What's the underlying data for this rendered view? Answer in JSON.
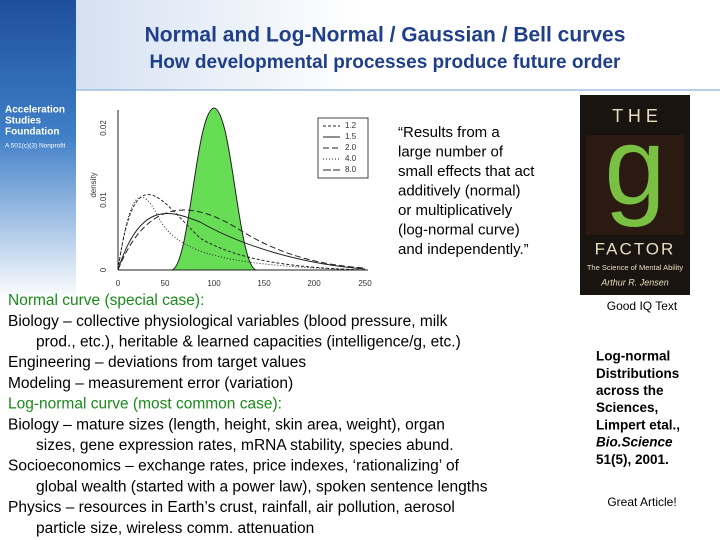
{
  "header": {
    "title": "Normal and Log-Normal / Gaussian / Bell curves",
    "subtitle": "How developmental processes produce future order"
  },
  "logo": {
    "name": [
      "Acceleration",
      "Studies",
      "Foundation"
    ],
    "tagline": "A 501(c)(3) Nonprofit"
  },
  "figure": {
    "y_label": "density",
    "y_ticks": [
      "0.02",
      "0.01",
      "0"
    ],
    "x_ticks": [
      "0",
      "50",
      "100",
      "150",
      "200",
      "250"
    ],
    "legend": [
      "1.2",
      "1.5",
      "2.0",
      "4.0",
      "8.0"
    ]
  },
  "quote": [
    "“Results from a",
    "large number of",
    "small effects that act",
    "additively (normal)",
    "or multiplicatively",
    "(log-normal curve)",
    "and independently.”"
  ],
  "book": {
    "the": "T H E",
    "letter": "g",
    "factor": "FACTOR",
    "subtitle": "The Science of Mental Ability",
    "author": "Arthur R. Jensen",
    "caption": "Good IQ Text"
  },
  "article": {
    "lines": [
      "Log-normal",
      "Distributions",
      "across the",
      "Sciences,",
      "Limpert etal.,"
    ],
    "journal": "Bio.Science",
    "issue": "51(5), 2001.",
    "caption": "Great Article!"
  },
  "body": [
    {
      "heading": "Normal curve (special case):"
    },
    {
      "lines": [
        "Biology – collective physiological variables (blood pressure, milk",
        "prod., etc.), heritable & learned capacities (intelligence/g, etc.)"
      ]
    },
    {
      "lines": [
        "Engineering – deviations from target values"
      ]
    },
    {
      "lines": [
        "Modeling – measurement error (variation)"
      ]
    },
    {
      "heading": "Log-normal curve (most common case):"
    },
    {
      "lines": [
        "Biology – mature sizes (length, height, skin area, weight), organ",
        "sizes, gene expression rates, mRNA stability, species abund."
      ]
    },
    {
      "lines": [
        "Socioeconomics – exchange rates, price indexes, ‘rationalizing’ of",
        "global wealth (started with a power law), spoken sentence lengths"
      ]
    },
    {
      "lines": [
        "Physics – resources in Earth’s crust, rainfall, air pollution, aerosol",
        "particle size, wireless comm. attenuation"
      ]
    }
  ]
}
